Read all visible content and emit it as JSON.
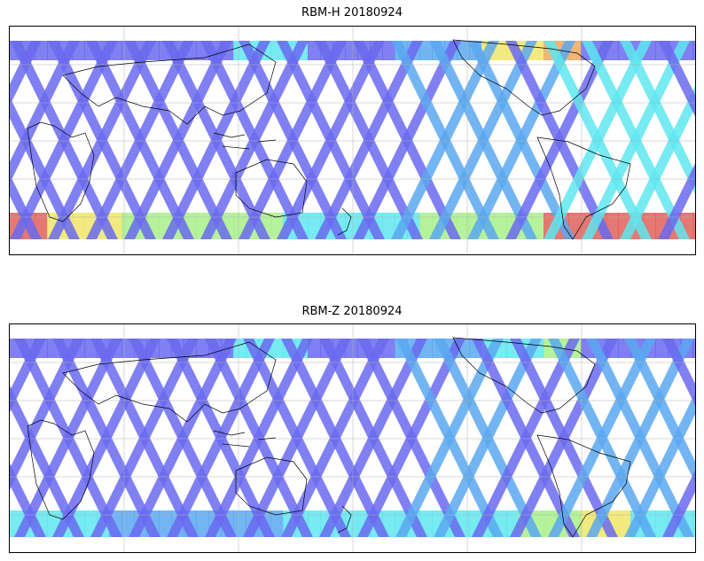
{
  "panels": [
    {
      "title": "RBM-H 20180924",
      "colormap": [
        "#6a6af0",
        "#5aa8f0",
        "#5fe6f0",
        "#a8f08a",
        "#f0e66a",
        "#f0a860",
        "#e0605a"
      ],
      "high_southern_band": true
    },
    {
      "title": "RBM-Z 20180924",
      "colormap": [
        "#6a6af0",
        "#5aa8f0",
        "#5fe6f0",
        "#a8f08a",
        "#f0e66a",
        "#f0a860",
        "#e0605a"
      ],
      "high_southern_band": false
    }
  ],
  "map": {
    "projection": "PlateCarree",
    "gridlines": true,
    "coastlines": true
  }
}
